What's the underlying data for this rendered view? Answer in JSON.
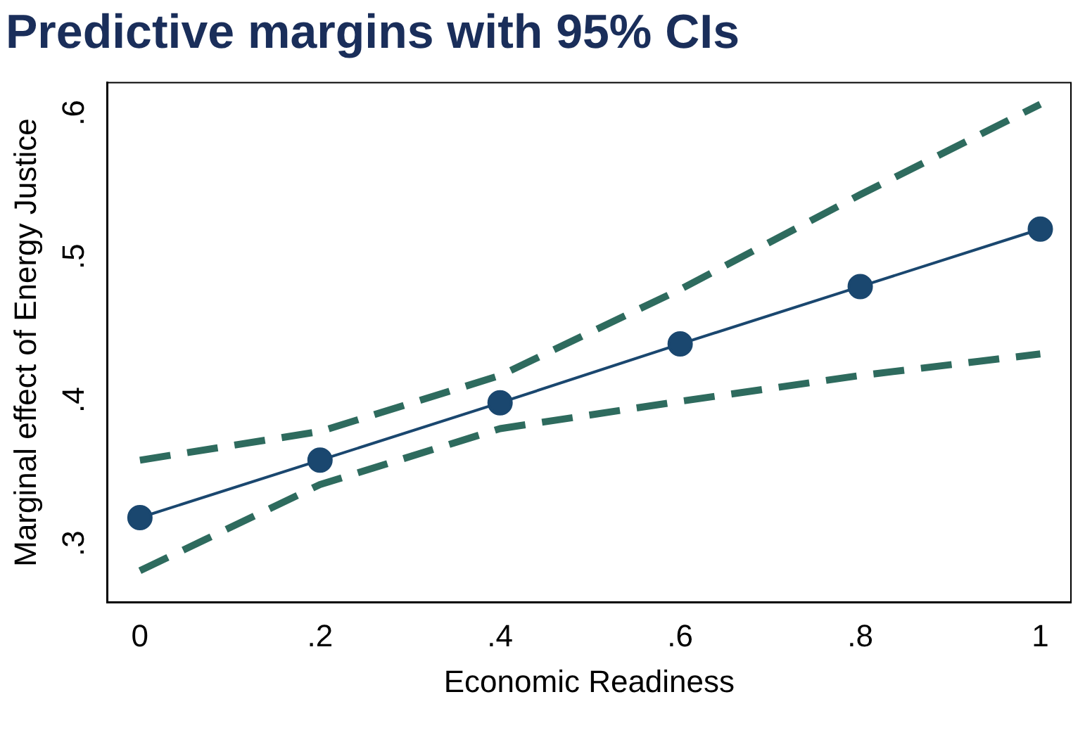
{
  "chart_data": {
    "type": "line",
    "title": "Predictive margins with 95% CIs",
    "xlabel": "Economic Readiness",
    "ylabel": "Marginal effect of Energy Justice",
    "x": [
      0,
      0.2,
      0.4,
      0.6,
      0.8,
      1
    ],
    "series": [
      {
        "color": "#1a476f",
        "values": [
          0.318,
          0.358,
          0.398,
          0.439,
          0.479,
          0.519
        ],
        "marker": "circle",
        "line_style": "solid"
      },
      {
        "color": "#2e6b5e",
        "values": [
          0.281,
          0.341,
          0.38,
          0.399,
          0.417,
          0.432
        ],
        "marker": "none",
        "line_style": "dashed"
      },
      {
        "color": "#2e6b5e",
        "values": [
          0.358,
          0.378,
          0.417,
          0.477,
          0.543,
          0.606
        ],
        "marker": "none",
        "line_style": "dashed"
      }
    ],
    "xlim": [
      -0.036,
      1.034
    ],
    "xticks": [
      0,
      {
        "value": 0.2,
        "label": ".2"
      },
      {
        "value": 0.4,
        "label": ".4"
      },
      {
        "value": 0.6,
        "label": ".6"
      },
      {
        "value": 0.8,
        "label": ".8"
      },
      1
    ],
    "ylim": [
      0.259,
      0.621
    ],
    "yticks": [
      {
        "value": 0.3,
        "label": ".3"
      },
      {
        "value": 0.4,
        "label": ".4"
      },
      {
        "value": 0.5,
        "label": ".5"
      },
      {
        "value": 0.6,
        "label": ".6"
      }
    ],
    "grid": false,
    "legend": false
  }
}
